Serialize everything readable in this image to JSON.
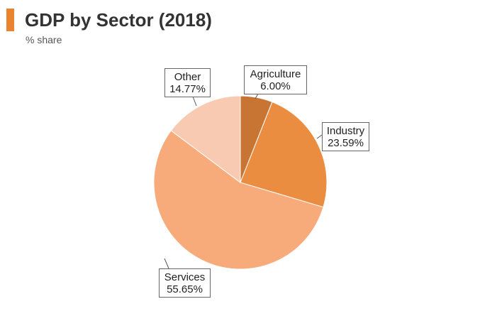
{
  "header": {
    "title": "GDP by Sector (2018)",
    "subtitle": "% share",
    "accent_color": "#e9832f"
  },
  "chart_data": {
    "type": "pie",
    "title": "GDP by Sector (2018)",
    "subtitle": "% share",
    "start_angle_deg": 0,
    "direction": "clockwise",
    "slices": [
      {
        "name": "Agriculture",
        "label": "6.00%",
        "value": 6.0,
        "color": "#c87534"
      },
      {
        "name": "Industry",
        "label": "23.59%",
        "value": 23.59,
        "color": "#ea8d40"
      },
      {
        "name": "Services",
        "label": "55.65%",
        "value": 55.65,
        "color": "#f8ab7a"
      },
      {
        "name": "Other",
        "label": "14.77%",
        "value": 14.77,
        "color": "#f9cab2"
      }
    ],
    "legend": "none"
  }
}
